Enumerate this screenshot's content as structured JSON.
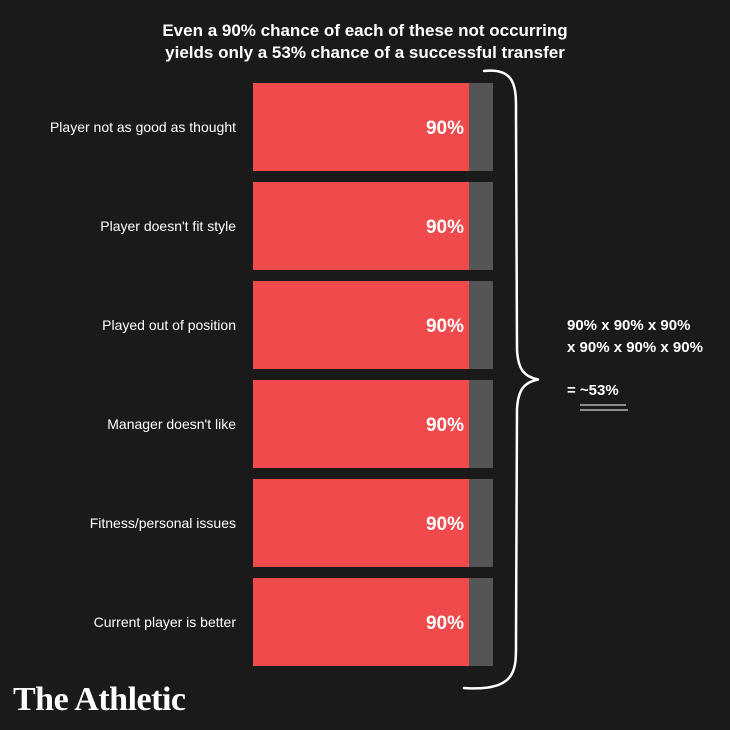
{
  "title_lines": [
    "Even a 90% chance of each of these not occurring",
    "yields only a 53% chance of a successful transfer"
  ],
  "formula": {
    "line1": "90% x 90% x 90%",
    "line2": "x 90% x 90% x 90%",
    "result": "= ~53%"
  },
  "logo": "The Athletic",
  "colors": {
    "background": "#1a1a1a",
    "bar_fill": "#f04a4d",
    "bar_remainder": "#555555",
    "text": "#ffffff",
    "brace": "#ffffff"
  },
  "chart_data": {
    "type": "bar",
    "orientation": "horizontal",
    "stacked": true,
    "categories": [
      "Player not as good as thought",
      "Player doesn't fit style",
      "Played out of position",
      "Manager doesn't like",
      "Fitness/personal issues",
      "Current player is better"
    ],
    "values": [
      90,
      90,
      90,
      90,
      90,
      90
    ],
    "remainder": [
      10,
      10,
      10,
      10,
      10,
      10
    ],
    "data_labels": [
      "90%",
      "90%",
      "90%",
      "90%",
      "90%",
      "90%"
    ],
    "xlim": [
      0,
      100
    ],
    "grid": false,
    "legend": "none"
  }
}
